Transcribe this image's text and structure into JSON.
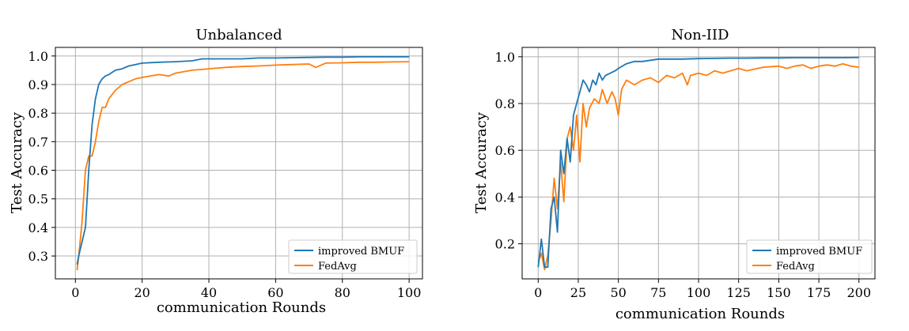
{
  "chart_data": [
    {
      "type": "line",
      "title": "Unbalanced",
      "xlabel": "communication Rounds",
      "ylabel": "Test Accuracy",
      "xlim": [
        -6,
        104
      ],
      "ylim": [
        0.22,
        1.03
      ],
      "xticks": [
        0,
        20,
        40,
        60,
        80,
        100
      ],
      "yticks": [
        0.3,
        0.4,
        0.5,
        0.6,
        0.7,
        0.8,
        0.9,
        1.0
      ],
      "grid": true,
      "legend_position": "bottom-right",
      "series": [
        {
          "name": "improved BMUF",
          "color": "#1f77b4",
          "points": [
            [
              0.5,
              0.27
            ],
            [
              1,
              0.3
            ],
            [
              2,
              0.35
            ],
            [
              3,
              0.4
            ],
            [
              4,
              0.6
            ],
            [
              5,
              0.76
            ],
            [
              6,
              0.85
            ],
            [
              7,
              0.9
            ],
            [
              8,
              0.92
            ],
            [
              9,
              0.93
            ],
            [
              10,
              0.935
            ],
            [
              12,
              0.95
            ],
            [
              14,
              0.955
            ],
            [
              16,
              0.965
            ],
            [
              18,
              0.97
            ],
            [
              20,
              0.975
            ],
            [
              25,
              0.978
            ],
            [
              30,
              0.98
            ],
            [
              35,
              0.983
            ],
            [
              38,
              0.99
            ],
            [
              40,
              0.99
            ],
            [
              45,
              0.99
            ],
            [
              50,
              0.99
            ],
            [
              55,
              0.993
            ],
            [
              60,
              0.993
            ],
            [
              65,
              0.994
            ],
            [
              70,
              0.995
            ],
            [
              75,
              0.996
            ],
            [
              80,
              0.996
            ],
            [
              85,
              0.997
            ],
            [
              90,
              0.997
            ],
            [
              95,
              0.997
            ],
            [
              100,
              0.997
            ]
          ]
        },
        {
          "name": "FedAvg",
          "color": "#ff7f0e",
          "points": [
            [
              0.5,
              0.25
            ],
            [
              1,
              0.3
            ],
            [
              2,
              0.42
            ],
            [
              3,
              0.6
            ],
            [
              4,
              0.65
            ],
            [
              5,
              0.65
            ],
            [
              6,
              0.7
            ],
            [
              7,
              0.77
            ],
            [
              8,
              0.82
            ],
            [
              9,
              0.82
            ],
            [
              10,
              0.85
            ],
            [
              12,
              0.88
            ],
            [
              14,
              0.9
            ],
            [
              16,
              0.91
            ],
            [
              18,
              0.92
            ],
            [
              20,
              0.925
            ],
            [
              25,
              0.935
            ],
            [
              28,
              0.93
            ],
            [
              30,
              0.94
            ],
            [
              35,
              0.95
            ],
            [
              40,
              0.955
            ],
            [
              45,
              0.96
            ],
            [
              50,
              0.963
            ],
            [
              55,
              0.965
            ],
            [
              60,
              0.968
            ],
            [
              65,
              0.97
            ],
            [
              70,
              0.972
            ],
            [
              72,
              0.96
            ],
            [
              75,
              0.975
            ],
            [
              80,
              0.976
            ],
            [
              85,
              0.978
            ],
            [
              90,
              0.978
            ],
            [
              95,
              0.979
            ],
            [
              100,
              0.98
            ]
          ]
        }
      ]
    },
    {
      "type": "line",
      "title": "Non-IID",
      "xlabel": "communication Rounds",
      "ylabel": "Test Accuracy",
      "xlim": [
        -10,
        210
      ],
      "ylim": [
        0.05,
        1.04
      ],
      "xticks": [
        0,
        25,
        50,
        75,
        100,
        125,
        150,
        175,
        200
      ],
      "yticks": [
        0.2,
        0.4,
        0.6,
        0.8,
        1.0
      ],
      "grid": true,
      "legend_position": "bottom-right",
      "series": [
        {
          "name": "improved BMUF",
          "color": "#1f77b4",
          "points": [
            [
              0,
              0.1
            ],
            [
              2,
              0.22
            ],
            [
              4,
              0.1
            ],
            [
              6,
              0.1
            ],
            [
              8,
              0.35
            ],
            [
              10,
              0.4
            ],
            [
              12,
              0.25
            ],
            [
              14,
              0.6
            ],
            [
              16,
              0.5
            ],
            [
              18,
              0.65
            ],
            [
              20,
              0.55
            ],
            [
              22,
              0.75
            ],
            [
              24,
              0.8
            ],
            [
              26,
              0.85
            ],
            [
              28,
              0.9
            ],
            [
              30,
              0.88
            ],
            [
              32,
              0.85
            ],
            [
              34,
              0.9
            ],
            [
              36,
              0.88
            ],
            [
              38,
              0.93
            ],
            [
              40,
              0.9
            ],
            [
              42,
              0.92
            ],
            [
              45,
              0.93
            ],
            [
              48,
              0.94
            ],
            [
              50,
              0.95
            ],
            [
              55,
              0.97
            ],
            [
              60,
              0.98
            ],
            [
              65,
              0.98
            ],
            [
              70,
              0.985
            ],
            [
              75,
              0.99
            ],
            [
              80,
              0.99
            ],
            [
              90,
              0.99
            ],
            [
              100,
              0.992
            ],
            [
              110,
              0.993
            ],
            [
              120,
              0.994
            ],
            [
              130,
              0.994
            ],
            [
              140,
              0.995
            ],
            [
              150,
              0.995
            ],
            [
              160,
              0.996
            ],
            [
              170,
              0.996
            ],
            [
              180,
              0.996
            ],
            [
              190,
              0.996
            ],
            [
              200,
              0.997
            ]
          ]
        },
        {
          "name": "FedAvg",
          "color": "#ff7f0e",
          "points": [
            [
              0,
              0.12
            ],
            [
              2,
              0.16
            ],
            [
              4,
              0.09
            ],
            [
              6,
              0.15
            ],
            [
              8,
              0.3
            ],
            [
              10,
              0.48
            ],
            [
              12,
              0.35
            ],
            [
              14,
              0.55
            ],
            [
              16,
              0.38
            ],
            [
              18,
              0.65
            ],
            [
              20,
              0.7
            ],
            [
              22,
              0.6
            ],
            [
              24,
              0.75
            ],
            [
              26,
              0.55
            ],
            [
              28,
              0.8
            ],
            [
              30,
              0.7
            ],
            [
              32,
              0.78
            ],
            [
              35,
              0.82
            ],
            [
              38,
              0.8
            ],
            [
              40,
              0.86
            ],
            [
              43,
              0.8
            ],
            [
              46,
              0.85
            ],
            [
              48,
              0.82
            ],
            [
              50,
              0.75
            ],
            [
              52,
              0.86
            ],
            [
              55,
              0.9
            ],
            [
              60,
              0.88
            ],
            [
              65,
              0.9
            ],
            [
              70,
              0.91
            ],
            [
              75,
              0.89
            ],
            [
              80,
              0.92
            ],
            [
              85,
              0.91
            ],
            [
              90,
              0.93
            ],
            [
              93,
              0.88
            ],
            [
              95,
              0.92
            ],
            [
              100,
              0.93
            ],
            [
              105,
              0.92
            ],
            [
              110,
              0.94
            ],
            [
              115,
              0.93
            ],
            [
              120,
              0.94
            ],
            [
              125,
              0.95
            ],
            [
              130,
              0.94
            ],
            [
              140,
              0.955
            ],
            [
              150,
              0.96
            ],
            [
              155,
              0.95
            ],
            [
              160,
              0.96
            ],
            [
              165,
              0.965
            ],
            [
              170,
              0.95
            ],
            [
              175,
              0.96
            ],
            [
              180,
              0.965
            ],
            [
              185,
              0.96
            ],
            [
              190,
              0.97
            ],
            [
              195,
              0.96
            ],
            [
              200,
              0.955
            ]
          ]
        }
      ]
    }
  ]
}
